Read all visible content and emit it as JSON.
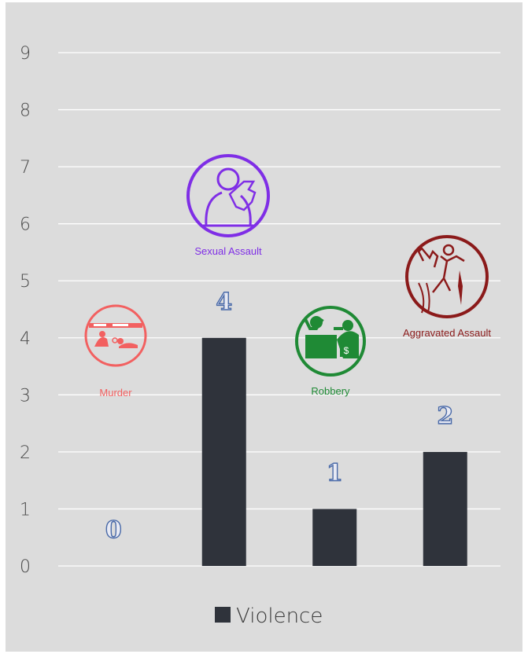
{
  "chart_data": {
    "type": "bar",
    "categories": [
      "Murder",
      "Sexual Assault",
      "Robbery",
      "Aggravated Assault"
    ],
    "series": [
      {
        "name": "Violence",
        "values": [
          0,
          4,
          1,
          2
        ],
        "color": "#2f333b"
      }
    ],
    "data_labels": [
      "0",
      "4",
      "1",
      "2"
    ],
    "ylim": [
      0,
      9
    ],
    "yticks": [
      "0",
      "1",
      "2",
      "3",
      "4",
      "5",
      "6",
      "7",
      "8",
      "9"
    ],
    "grid": true,
    "legend": {
      "position": "bottom",
      "label": "Violence"
    },
    "xlabel": "",
    "ylabel": "",
    "title": ""
  },
  "icons": [
    {
      "caption": "Murder",
      "icon": "crime-scene-icon",
      "color": "#f26060"
    },
    {
      "caption": "Sexual Assault",
      "icon": "harassment-icon",
      "color": "#7f2ee6"
    },
    {
      "caption": "Robbery",
      "icon": "robbery-icon",
      "color": "#1f8a35"
    },
    {
      "caption": "Aggravated Assault",
      "icon": "assault-icon",
      "color": "#8b1a1a"
    }
  ],
  "colors": {
    "background": "#dcdcdc",
    "gridline": "#ffffff",
    "bar": "#2f333b"
  }
}
